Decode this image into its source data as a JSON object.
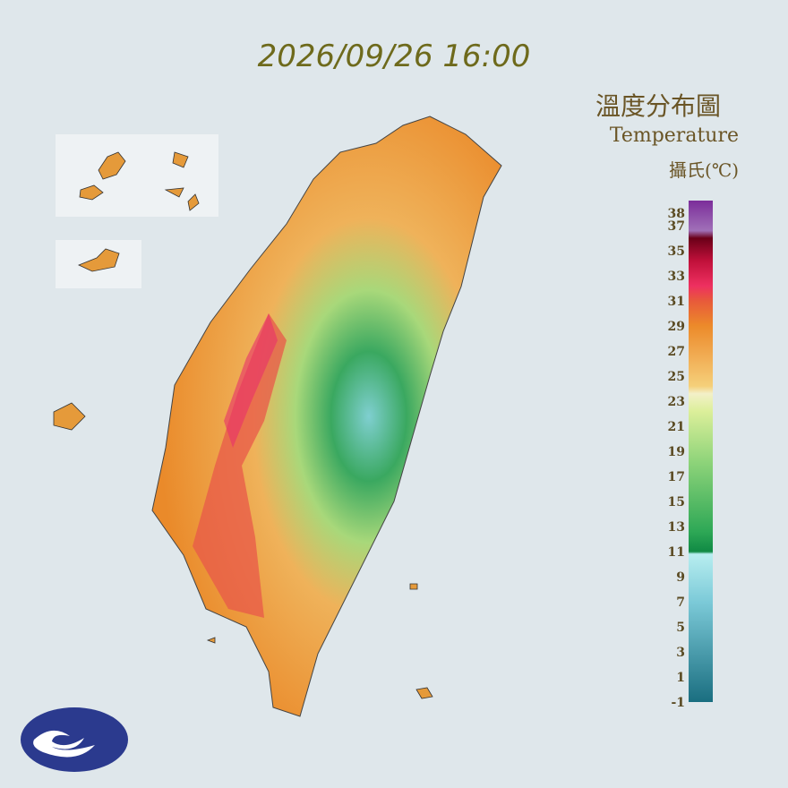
{
  "header": {
    "timestamp": "2026/09/26 16:00"
  },
  "legend": {
    "title": "溫度分布圖",
    "subtitle": "Temperature",
    "unit": "攝氏(℃)",
    "labels": [
      38,
      37,
      35,
      33,
      31,
      29,
      27,
      25,
      23,
      21,
      19,
      17,
      15,
      13,
      11,
      9,
      7,
      5,
      3,
      1,
      -1
    ]
  }
}
